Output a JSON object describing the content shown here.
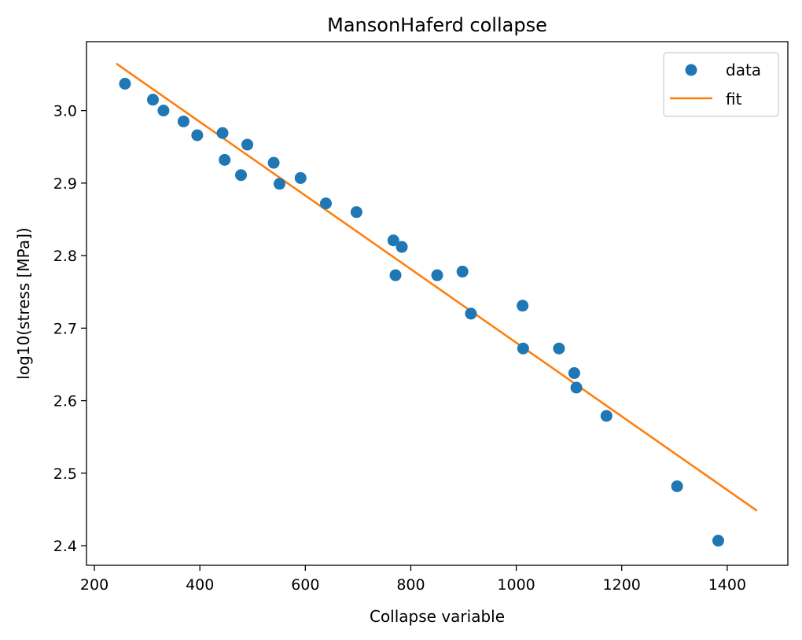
{
  "chart_data": {
    "type": "scatter",
    "title": "MansonHaferd collapse",
    "xlabel": "Collapse variable",
    "ylabel": "log10(stress [MPa])",
    "xlim": [
      185,
      1515
    ],
    "ylim": [
      2.373,
      3.095
    ],
    "x_ticks": [
      200,
      400,
      600,
      800,
      1000,
      1200,
      1400
    ],
    "y_ticks": [
      2.4,
      2.5,
      2.6,
      2.7,
      2.8,
      2.9,
      3.0
    ],
    "x_tick_labels": [
      "200",
      "400",
      "600",
      "800",
      "1000",
      "1200",
      "1400"
    ],
    "y_tick_labels": [
      "2.4",
      "2.5",
      "2.6",
      "2.7",
      "2.8",
      "2.9",
      "3.0"
    ],
    "grid": false,
    "legend_position": "top-right",
    "series": [
      {
        "name": "data",
        "kind": "scatter",
        "color": "#1f77b4",
        "points": [
          [
            258,
            3.037
          ],
          [
            311,
            3.015
          ],
          [
            331,
            3.0
          ],
          [
            369,
            2.985
          ],
          [
            395,
            2.966
          ],
          [
            443,
            2.969
          ],
          [
            447,
            2.932
          ],
          [
            478,
            2.911
          ],
          [
            490,
            2.953
          ],
          [
            540,
            2.928
          ],
          [
            551,
            2.899
          ],
          [
            591,
            2.907
          ],
          [
            639,
            2.872
          ],
          [
            697,
            2.86
          ],
          [
            767,
            2.821
          ],
          [
            771,
            2.773
          ],
          [
            783,
            2.812
          ],
          [
            850,
            2.773
          ],
          [
            898,
            2.778
          ],
          [
            914,
            2.72
          ],
          [
            1012,
            2.731
          ],
          [
            1013,
            2.672
          ],
          [
            1081,
            2.672
          ],
          [
            1110,
            2.638
          ],
          [
            1114,
            2.618
          ],
          [
            1171,
            2.579
          ],
          [
            1305,
            2.482
          ],
          [
            1383,
            2.407
          ]
        ]
      },
      {
        "name": "fit",
        "kind": "line",
        "color": "#ff7f0e",
        "points": [
          [
            243,
            3.064
          ],
          [
            1455,
            2.449
          ]
        ]
      }
    ]
  }
}
